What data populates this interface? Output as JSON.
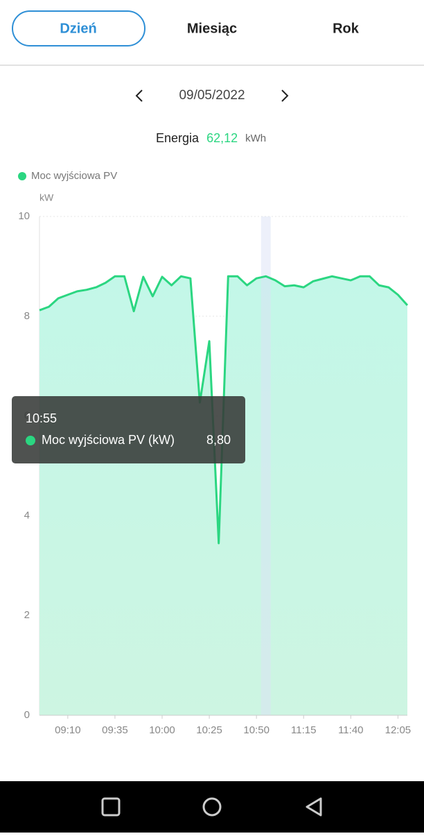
{
  "tabs": [
    "Dzień",
    "Miesiąc",
    "Rok"
  ],
  "date": "09/05/2022",
  "energy": {
    "label": "Energia",
    "value": "62,12",
    "unit": "kWh"
  },
  "tooltip": {
    "time": "10:55",
    "series": "Moc wyjściowa PV (kW)",
    "label": "8,80"
  },
  "chart_data": {
    "type": "line",
    "unit": "kW",
    "categories": [
      null,
      null,
      null,
      "09:10",
      null,
      null,
      null,
      null,
      "09:35",
      null,
      null,
      null,
      null,
      "10:00",
      null,
      null,
      null,
      null,
      "10:25",
      null,
      null,
      null,
      null,
      "10:50",
      null,
      null,
      null,
      null,
      "11:15",
      null,
      null,
      null,
      null,
      "11:40",
      null,
      null,
      null,
      null,
      "12:05",
      null
    ],
    "series": [
      {
        "name": "Moc wyjściowa PV",
        "color": "#2bd681",
        "values": [
          8.12,
          8.19,
          8.36,
          8.43,
          8.5,
          8.53,
          8.58,
          8.67,
          8.8,
          8.8,
          8.1,
          8.79,
          8.4,
          8.79,
          8.62,
          8.8,
          8.76,
          6.27,
          7.5,
          3.45,
          8.8,
          8.8,
          8.62,
          8.76,
          8.8,
          8.72,
          8.6,
          8.62,
          8.58,
          8.7,
          8.75,
          8.8,
          8.76,
          8.72,
          8.8,
          8.8,
          8.62,
          8.58,
          8.43,
          8.22
        ]
      }
    ],
    "ylim": [
      0,
      10
    ],
    "yticks": [
      0,
      2,
      4,
      6,
      8,
      10
    ],
    "grid": true
  }
}
